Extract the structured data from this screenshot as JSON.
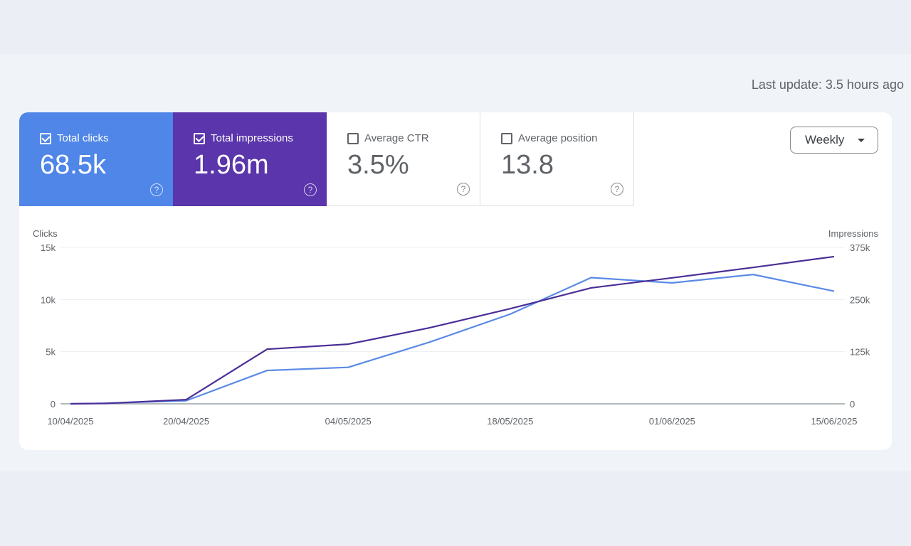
{
  "last_update": "Last update: 3.5 hours ago",
  "metrics": [
    {
      "label": "Total clicks",
      "value": "68.5k",
      "checked": true,
      "color": "#4f86e8"
    },
    {
      "label": "Total impressions",
      "value": "1.96m",
      "checked": true,
      "color": "#5a35ab"
    },
    {
      "label": "Average CTR",
      "value": "3.5%",
      "checked": false
    },
    {
      "label": "Average position",
      "value": "13.8",
      "checked": false
    }
  ],
  "period_select": {
    "value": "Weekly",
    "icon": "caret-down-icon"
  },
  "chart_data": {
    "type": "line",
    "x": [
      "10/04/2025",
      "13/04/2025",
      "20/04/2025",
      "27/04/2025",
      "04/05/2025",
      "11/05/2025",
      "18/05/2025",
      "25/05/2025",
      "01/06/2025",
      "08/06/2025",
      "15/06/2025"
    ],
    "x_ticks": [
      "10/04/2025",
      "20/04/2025",
      "04/05/2025",
      "18/05/2025",
      "01/06/2025",
      "15/06/2025"
    ],
    "ylabel_left": "Clicks",
    "ylabel_right": "Impressions",
    "y_left_ticks": [
      "0",
      "5k",
      "10k",
      "15k"
    ],
    "y_right_ticks": [
      "0",
      "125k",
      "250k",
      "375k"
    ],
    "y_left_lim": [
      0,
      15000
    ],
    "y_right_lim": [
      0,
      375000
    ],
    "grid": true,
    "series": [
      {
        "axis": "left",
        "color": "#5b8ae6",
        "values": [
          0,
          50,
          300,
          3200,
          3500,
          5900,
          8600,
          12100,
          11600,
          12400,
          10800
        ]
      },
      {
        "axis": "right",
        "color": "#4b2e96",
        "values": [
          0,
          1000,
          10000,
          131000,
          143000,
          182000,
          228000,
          278000,
          302000,
          327000,
          353000
        ]
      }
    ]
  }
}
